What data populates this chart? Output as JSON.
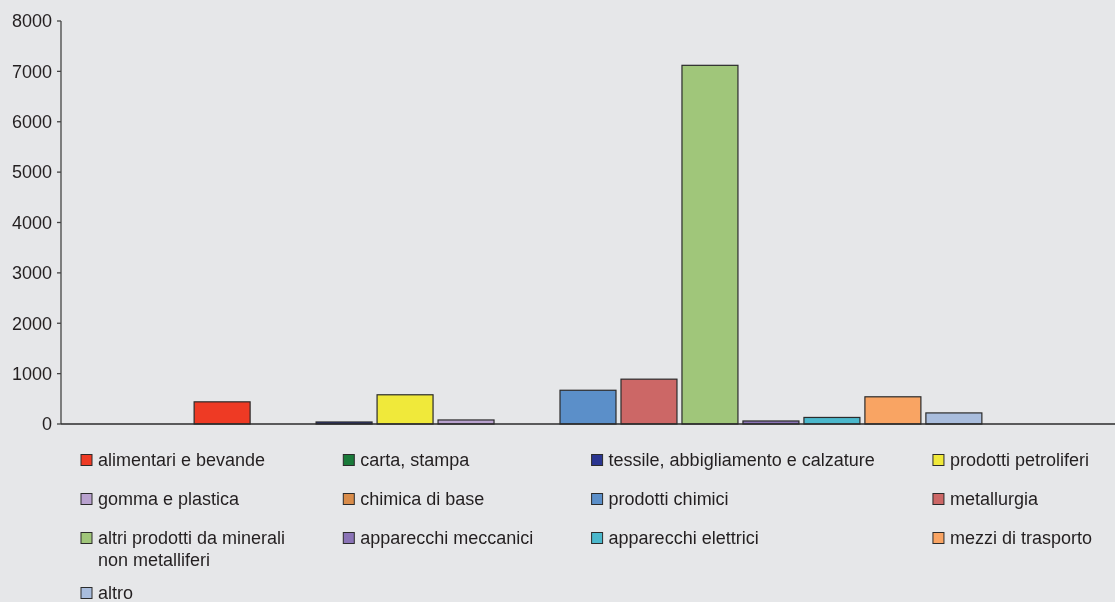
{
  "chart_data": {
    "type": "bar",
    "categories": [
      null
    ],
    "series": [
      {
        "name": "alimentari e bevande",
        "color": "#ee3a24",
        "values": [
          440
        ]
      },
      {
        "name": "carta, stampa",
        "color": "#1a7a3a",
        "values": [
          null
        ]
      },
      {
        "name": "tessile, abbigliamento e calzature",
        "color": "#2a3590",
        "values": [
          40
        ]
      },
      {
        "name": "prodotti petroliferi",
        "color": "#f0e93a",
        "values": [
          580
        ]
      },
      {
        "name": "gomma e plastica",
        "color": "#b9a2cf",
        "values": [
          80
        ]
      },
      {
        "name": "chimica di base",
        "color": "#d98c4a",
        "values": [
          null
        ]
      },
      {
        "name": "prodotti chimici",
        "color": "#5b8fc9",
        "values": [
          670
        ]
      },
      {
        "name": "metallurgia",
        "color": "#cc6766",
        "values": [
          890
        ]
      },
      {
        "name": "altri prodotti da minerali non metalliferi",
        "color": "#a0c67a",
        "values": [
          7120
        ]
      },
      {
        "name": "apparecchi meccanici",
        "color": "#8a73b6",
        "values": [
          60
        ]
      },
      {
        "name": "apparecchi elettrici",
        "color": "#4bb8cc",
        "values": [
          130
        ]
      },
      {
        "name": "mezzi di trasporto",
        "color": "#f9a463",
        "values": [
          540
        ]
      },
      {
        "name": "altro",
        "color": "#a9bddd",
        "values": [
          220
        ]
      }
    ],
    "ylim": [
      0,
      8000
    ],
    "yticks": [
      0,
      1000,
      2000,
      3000,
      4000,
      5000,
      6000,
      7000,
      8000
    ],
    "legend": "bottom"
  }
}
